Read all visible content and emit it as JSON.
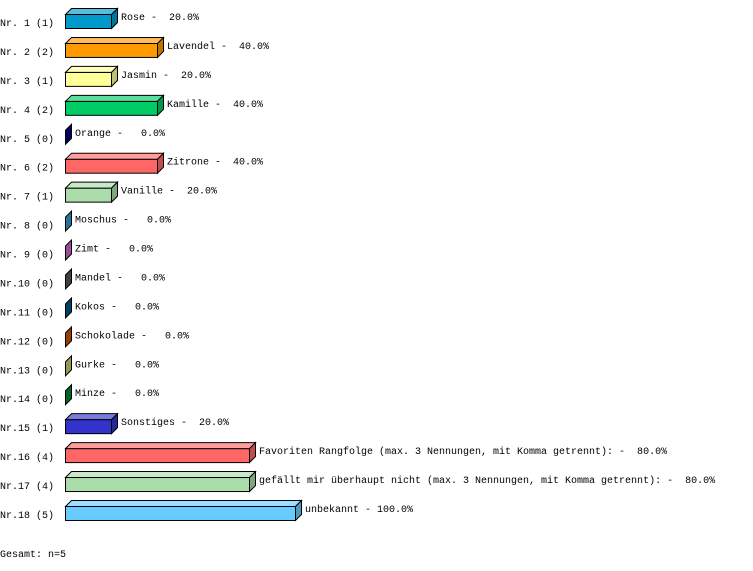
{
  "chart_data": {
    "type": "bar",
    "orientation": "horizontal",
    "style": "3d",
    "xlim": [
      0,
      100
    ],
    "unit": "%",
    "grid": false,
    "rows": [
      {
        "rank": "Nr. 1",
        "count": "(1)",
        "name": "Rose",
        "value": 20.0,
        "label": "Rose -  20.0%",
        "color": "#0099cc"
      },
      {
        "rank": "Nr. 2",
        "count": "(2)",
        "name": "Lavendel",
        "value": 40.0,
        "label": "Lavendel -  40.0%",
        "color": "#ff9900"
      },
      {
        "rank": "Nr. 3",
        "count": "(1)",
        "name": "Jasmin",
        "value": 20.0,
        "label": "Jasmin -  20.0%",
        "color": "#ffff99"
      },
      {
        "rank": "Nr. 4",
        "count": "(2)",
        "name": "Kamille",
        "value": 40.0,
        "label": "Kamille -  40.0%",
        "color": "#00cc66"
      },
      {
        "rank": "Nr. 5",
        "count": "(0)",
        "name": "Orange",
        "value": 0.0,
        "label": "Orange -   0.0%",
        "color": "#000080"
      },
      {
        "rank": "Nr. 6",
        "count": "(2)",
        "name": "Zitrone",
        "value": 40.0,
        "label": "Zitrone -  40.0%",
        "color": "#ff6666"
      },
      {
        "rank": "Nr. 7",
        "count": "(1)",
        "name": "Vanille",
        "value": 20.0,
        "label": "Vanille -  20.0%",
        "color": "#aaddaa"
      },
      {
        "rank": "Nr. 8",
        "count": "(0)",
        "name": "Moschus",
        "value": 0.0,
        "label": "Moschus -   0.0%",
        "color": "#3399cc"
      },
      {
        "rank": "Nr. 9",
        "count": "(0)",
        "name": "Zimt",
        "value": 0.0,
        "label": "Zimt -   0.0%",
        "color": "#cc66cc"
      },
      {
        "rank": "Nr.10",
        "count": "(0)",
        "name": "Mandel",
        "value": 0.0,
        "label": "Mandel -   0.0%",
        "color": "#555555"
      },
      {
        "rank": "Nr.11",
        "count": "(0)",
        "name": "Kokos",
        "value": 0.0,
        "label": "Kokos -   0.0%",
        "color": "#005588"
      },
      {
        "rank": "Nr.12",
        "count": "(0)",
        "name": "Schokolade",
        "value": 0.0,
        "label": "Schokolade -   0.0%",
        "color": "#cc5500"
      },
      {
        "rank": "Nr.13",
        "count": "(0)",
        "name": "Gurke",
        "value": 0.0,
        "label": "Gurke -   0.0%",
        "color": "#cccc66"
      },
      {
        "rank": "Nr.14",
        "count": "(0)",
        "name": "Minze",
        "value": 0.0,
        "label": "Minze -   0.0%",
        "color": "#008833"
      },
      {
        "rank": "Nr.15",
        "count": "(1)",
        "name": "Sonstiges",
        "value": 20.0,
        "label": "Sonstiges -  20.0%",
        "color": "#3333cc"
      },
      {
        "rank": "Nr.16",
        "count": "(4)",
        "name": "Favoriten Rangfolge (max. 3 Nennungen, mit Komma getrennt):",
        "value": 80.0,
        "label": "Favoriten Rangfolge (max. 3 Nennungen, mit Komma getrennt): -  80.0%",
        "color": "#ff6666"
      },
      {
        "rank": "Nr.17",
        "count": "(4)",
        "name": "gefällt mir überhaupt nicht (max. 3 Nennungen, mit Komma getrennt):",
        "value": 80.0,
        "label": "gefällt mir überhaupt nicht (max. 3 Nennungen, mit Komma getrennt): -  80.0%",
        "color": "#aaddaa"
      },
      {
        "rank": "Nr.18",
        "count": "(5)",
        "name": "unbekannt",
        "value": 100.0,
        "label": "unbekannt - 100.0%",
        "color": "#66ccff"
      }
    ]
  },
  "footer": {
    "total": "Gesamt: n=5"
  }
}
